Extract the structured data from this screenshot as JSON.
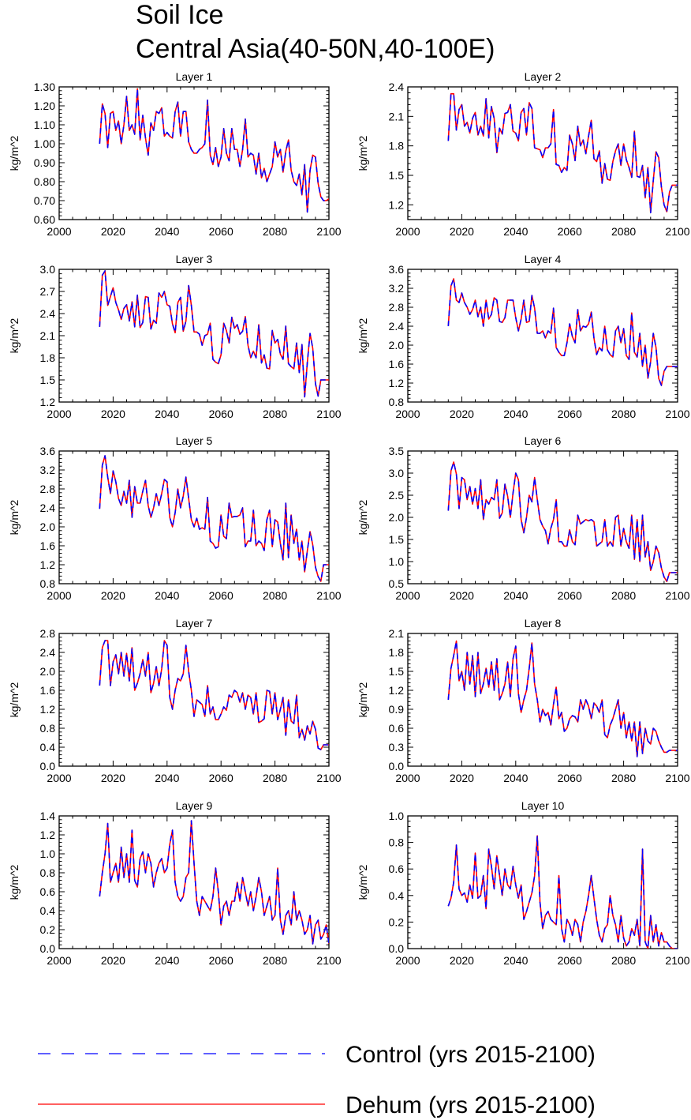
{
  "title_line1": "Soil Ice",
  "title_line2": "Central Asia(40-50N,40-100E)",
  "legend": [
    {
      "label": "Control (yrs 2015-2100)",
      "color": "#0000ff",
      "dash": true
    },
    {
      "label": "Dehum (yrs 2015-2100)",
      "color": "#ff0000",
      "dash": false
    }
  ],
  "colors": {
    "control": "#0000ff",
    "dehum": "#ff0000",
    "axis": "#000000"
  },
  "chart_data": [
    {
      "type": "line",
      "title": "Layer 1",
      "ylabel": "kg/m^2",
      "xlim": [
        2000,
        2100
      ],
      "ylim": [
        0.6,
        1.3
      ],
      "xticks": [
        "2000",
        "2020",
        "2040",
        "2060",
        "2080",
        "2100"
      ],
      "yticks": [
        "0.60",
        "0.70",
        "0.80",
        "0.90",
        "1.00",
        "1.10",
        "1.20",
        "1.30"
      ],
      "x_start": 2015,
      "values": [
        1.0,
        1.21,
        1.16,
        0.98,
        1.16,
        1.17,
        1.07,
        1.12,
        1.0,
        1.1,
        1.25,
        1.07,
        1.1,
        1.05,
        1.29,
        1.02,
        1.15,
        1.03,
        0.94,
        1.11,
        1.07,
        1.17,
        1.16,
        1.19,
        1.04,
        1.06,
        1.04,
        1.03,
        1.17,
        1.22,
        1.04,
        1.17,
        1.17,
        1.01,
        0.97,
        0.95,
        0.95,
        0.97,
        0.98,
        1.0,
        1.23,
        0.94,
        0.89,
        0.98,
        0.88,
        0.93,
        1.08,
        0.95,
        0.91,
        1.08,
        0.97,
        0.97,
        0.88,
        0.97,
        1.13,
        0.93,
        0.95,
        0.94,
        0.84,
        0.95,
        0.82,
        0.87,
        0.8,
        0.84,
        0.88,
        1.01,
        0.93,
        0.97,
        0.85,
        0.96,
        1.02,
        0.86,
        0.8,
        0.78,
        0.84,
        0.73,
        0.89,
        0.64,
        0.86,
        0.94,
        0.93,
        0.79,
        0.72,
        0.7,
        0.7,
        0.71
      ]
    },
    {
      "type": "line",
      "title": "Layer 2",
      "ylabel": "kg/m^2",
      "xlim": [
        2000,
        2100
      ],
      "ylim": [
        1.05,
        2.4
      ],
      "xticks": [
        "2000",
        "2020",
        "2040",
        "2060",
        "2080",
        "2100"
      ],
      "yticks": [
        "1.2",
        "1.5",
        "1.8",
        "2.1",
        "2.4"
      ],
      "x_start": 2015,
      "values": [
        1.85,
        2.33,
        2.33,
        1.96,
        2.17,
        2.22,
        2.0,
        2.04,
        1.93,
        2.08,
        2.14,
        1.91,
        2.0,
        1.9,
        2.28,
        1.88,
        2.2,
        2.08,
        1.73,
        1.98,
        1.92,
        2.13,
        2.14,
        2.22,
        1.95,
        1.93,
        1.85,
        2.14,
        2.18,
        1.91,
        2.24,
        2.18,
        1.78,
        1.77,
        1.76,
        1.68,
        1.78,
        1.78,
        1.82,
        2.17,
        1.61,
        1.6,
        1.53,
        1.58,
        1.55,
        1.91,
        1.82,
        1.65,
        2.0,
        1.8,
        1.86,
        1.72,
        1.9,
        2.06,
        1.67,
        1.64,
        1.75,
        1.42,
        1.62,
        1.46,
        1.45,
        1.64,
        1.75,
        1.82,
        1.6,
        1.82,
        1.66,
        1.58,
        1.48,
        1.95,
        1.49,
        1.48,
        1.6,
        1.27,
        1.58,
        1.12,
        1.45,
        1.74,
        1.68,
        1.38,
        1.2,
        1.13,
        1.33,
        1.4,
        1.4,
        1.4
      ]
    },
    {
      "type": "line",
      "title": "Layer 3",
      "ylabel": "kg/m^2",
      "xlim": [
        2000,
        2100
      ],
      "ylim": [
        1.2,
        3.0
      ],
      "xticks": [
        "2000",
        "2020",
        "2040",
        "2060",
        "2080",
        "2100"
      ],
      "yticks": [
        "1.2",
        "1.5",
        "1.8",
        "2.1",
        "2.4",
        "2.7",
        "3.0"
      ],
      "x_start": 2015,
      "values": [
        2.22,
        2.92,
        2.98,
        2.51,
        2.63,
        2.75,
        2.55,
        2.45,
        2.32,
        2.47,
        2.52,
        2.3,
        2.56,
        2.22,
        2.65,
        2.21,
        2.28,
        2.63,
        2.62,
        2.19,
        2.31,
        2.27,
        2.68,
        2.62,
        2.7,
        2.52,
        2.5,
        2.26,
        2.14,
        2.55,
        2.62,
        2.16,
        2.3,
        2.78,
        2.51,
        2.15,
        2.15,
        2.12,
        1.97,
        2.1,
        2.12,
        2.27,
        1.78,
        1.74,
        1.72,
        1.84,
        2.27,
        2.17,
        2.0,
        2.35,
        2.2,
        2.25,
        2.12,
        2.16,
        2.36,
        1.97,
        1.8,
        1.89,
        1.8,
        2.25,
        1.73,
        1.84,
        1.66,
        1.65,
        2.17,
        2.0,
        2.05,
        1.85,
        1.78,
        2.23,
        1.72,
        1.68,
        1.65,
        2.0,
        1.6,
        1.98,
        1.27,
        1.74,
        2.13,
        1.93,
        1.45,
        1.28,
        1.5,
        1.5,
        1.5,
        1.5
      ]
    },
    {
      "type": "line",
      "title": "Layer 4",
      "ylabel": "kg/m^2",
      "xlim": [
        2000,
        2100
      ],
      "ylim": [
        0.8,
        3.6
      ],
      "xticks": [
        "2000",
        "2020",
        "2040",
        "2060",
        "2080",
        "2100"
      ],
      "yticks": [
        "0.8",
        "1.2",
        "1.6",
        "2.0",
        "2.4",
        "2.8",
        "3.2",
        "3.6"
      ],
      "x_start": 2015,
      "values": [
        2.4,
        3.25,
        3.4,
        2.95,
        2.9,
        3.1,
        2.9,
        2.8,
        2.65,
        2.75,
        2.95,
        2.6,
        2.8,
        2.4,
        2.95,
        2.55,
        2.65,
        3.0,
        2.95,
        2.5,
        2.48,
        2.58,
        2.95,
        2.95,
        2.95,
        2.58,
        2.3,
        2.55,
        2.95,
        2.48,
        2.5,
        3.05,
        2.78,
        2.25,
        2.25,
        2.3,
        2.15,
        2.3,
        2.25,
        2.78,
        1.95,
        1.85,
        1.78,
        1.78,
        2.05,
        2.45,
        2.18,
        2.05,
        2.75,
        2.3,
        2.4,
        2.38,
        2.45,
        2.7,
        2.15,
        1.8,
        1.95,
        1.88,
        2.4,
        1.9,
        1.8,
        1.75,
        2.3,
        2.4,
        2.05,
        2.35,
        1.78,
        1.7,
        2.68,
        1.85,
        1.75,
        2.25,
        1.55,
        2.0,
        1.3,
        1.65,
        2.25,
        1.95,
        1.3,
        1.15,
        1.45,
        1.55,
        1.55,
        1.55,
        1.55,
        1.55
      ]
    },
    {
      "type": "line",
      "title": "Layer 5",
      "ylabel": "kg/m^2",
      "xlim": [
        2000,
        2100
      ],
      "ylim": [
        0.8,
        3.6
      ],
      "xticks": [
        "2000",
        "2020",
        "2040",
        "2060",
        "2080",
        "2100"
      ],
      "yticks": [
        "0.8",
        "1.2",
        "1.6",
        "2.0",
        "2.4",
        "2.8",
        "3.2",
        "3.6"
      ],
      "x_start": 2015,
      "values": [
        2.38,
        3.3,
        3.5,
        3.05,
        2.7,
        3.18,
        2.95,
        2.6,
        2.45,
        2.75,
        2.5,
        2.98,
        2.2,
        2.85,
        2.5,
        2.5,
        2.75,
        2.98,
        2.45,
        2.2,
        2.4,
        2.7,
        2.45,
        2.7,
        3.0,
        2.95,
        2.2,
        2.0,
        2.3,
        2.8,
        2.4,
        2.65,
        3.05,
        2.6,
        2.15,
        2.0,
        2.18,
        1.95,
        1.98,
        1.95,
        2.62,
        1.7,
        1.65,
        1.55,
        1.58,
        2.25,
        1.8,
        1.75,
        2.5,
        2.2,
        2.22,
        2.22,
        2.25,
        2.4,
        1.58,
        1.7,
        1.7,
        2.35,
        1.6,
        1.7,
        1.65,
        1.5,
        2.15,
        2.35,
        1.58,
        2.15,
        2.1,
        1.65,
        1.3,
        2.5,
        1.35,
        2.25,
        1.65,
        1.95,
        1.3,
        1.7,
        1.05,
        1.5,
        1.9,
        1.62,
        1.15,
        0.95,
        0.85,
        1.2,
        1.2,
        1.2
      ]
    },
    {
      "type": "line",
      "title": "Layer 6",
      "ylabel": "kg/m^2",
      "xlim": [
        2000,
        2100
      ],
      "ylim": [
        0.5,
        3.5
      ],
      "xticks": [
        "2000",
        "2020",
        "2040",
        "2060",
        "2080",
        "2100"
      ],
      "yticks": [
        "0.5",
        "1.0",
        "1.5",
        "2.0",
        "2.5",
        "3.0",
        "3.5"
      ],
      "x_start": 2015,
      "values": [
        2.15,
        3.05,
        3.25,
        2.98,
        2.2,
        2.9,
        2.85,
        2.4,
        2.7,
        2.3,
        2.65,
        2.2,
        2.85,
        1.95,
        2.4,
        2.3,
        2.45,
        2.4,
        2.85,
        1.98,
        2.1,
        2.75,
        2.48,
        2.0,
        2.55,
        3.0,
        2.85,
        1.95,
        1.65,
        2.0,
        2.5,
        2.35,
        2.9,
        2.4,
        1.95,
        1.8,
        1.7,
        1.4,
        1.75,
        1.95,
        2.4,
        1.45,
        1.45,
        1.35,
        1.35,
        1.72,
        1.45,
        1.38,
        2.05,
        1.85,
        1.9,
        1.95,
        1.92,
        1.95,
        1.9,
        1.35,
        1.4,
        1.45,
        1.95,
        1.35,
        1.45,
        1.35,
        2.0,
        2.05,
        1.35,
        1.75,
        1.45,
        1.3,
        2.05,
        1.05,
        1.95,
        1.0,
        2.05,
        1.1,
        1.45,
        0.8,
        1.0,
        1.35,
        1.2,
        0.85,
        0.65,
        0.55,
        0.75,
        0.75,
        0.75,
        0.75
      ]
    },
    {
      "type": "line",
      "title": "Layer 7",
      "ylabel": "kg/m^2",
      "xlim": [
        2000,
        2100
      ],
      "ylim": [
        0.0,
        2.8
      ],
      "xticks": [
        "2000",
        "2020",
        "2040",
        "2060",
        "2080",
        "2100"
      ],
      "yticks": [
        "0.0",
        "0.4",
        "0.8",
        "1.2",
        "1.6",
        "2.0",
        "2.4",
        "2.8"
      ],
      "x_start": 2015,
      "values": [
        1.7,
        2.5,
        2.65,
        2.65,
        1.7,
        2.2,
        2.35,
        1.95,
        2.4,
        1.9,
        2.38,
        1.8,
        2.5,
        1.6,
        1.75,
        1.95,
        2.25,
        1.9,
        2.4,
        1.55,
        1.75,
        2.1,
        1.7,
        2.05,
        2.65,
        2.55,
        1.45,
        1.2,
        1.6,
        1.85,
        1.8,
        1.95,
        2.55,
        2.0,
        1.6,
        1.05,
        1.4,
        1.35,
        1.3,
        1.05,
        1.7,
        1.1,
        1.25,
        0.98,
        0.98,
        1.1,
        1.25,
        1.18,
        1.5,
        1.45,
        1.6,
        1.55,
        1.35,
        1.55,
        1.2,
        1.5,
        1.45,
        1.1,
        1.55,
        0.92,
        0.95,
        1.0,
        1.6,
        1.58,
        1.1,
        1.55,
        0.98,
        1.2,
        1.45,
        0.65,
        1.4,
        0.95,
        0.9,
        1.5,
        0.6,
        0.78,
        0.55,
        0.85,
        0.68,
        0.95,
        0.78,
        0.38,
        0.35,
        0.45,
        0.45,
        0.45
      ]
    },
    {
      "type": "line",
      "title": "Layer 8",
      "ylabel": "kg/m^2",
      "xlim": [
        2000,
        2100
      ],
      "ylim": [
        0.0,
        2.1
      ],
      "xticks": [
        "2000",
        "2020",
        "2040",
        "2060",
        "2080",
        "2100"
      ],
      "yticks": [
        "0.0",
        "0.3",
        "0.6",
        "0.9",
        "1.2",
        "1.5",
        "1.8",
        "2.1"
      ],
      "x_start": 2015,
      "values": [
        1.05,
        1.55,
        1.75,
        1.98,
        1.35,
        1.5,
        1.2,
        1.8,
        1.3,
        1.75,
        1.1,
        1.8,
        1.15,
        1.3,
        1.55,
        1.25,
        1.65,
        1.2,
        1.7,
        1.05,
        1.15,
        1.3,
        1.65,
        1.1,
        1.7,
        1.9,
        1.15,
        0.85,
        1.05,
        1.2,
        1.55,
        1.95,
        1.3,
        1.05,
        0.7,
        0.9,
        0.8,
        0.85,
        0.65,
        0.98,
        1.25,
        0.75,
        0.85,
        0.55,
        0.6,
        0.75,
        0.8,
        0.78,
        0.7,
        1.05,
        0.9,
        1.05,
        0.95,
        0.75,
        1.0,
        0.95,
        0.85,
        1.05,
        0.5,
        0.45,
        0.65,
        0.75,
        0.9,
        1.05,
        0.6,
        0.85,
        0.45,
        0.7,
        0.4,
        0.7,
        0.15,
        0.7,
        0.2,
        0.6,
        0.4,
        0.35,
        0.6,
        0.55,
        0.4,
        0.3,
        0.22,
        0.22,
        0.25,
        0.25,
        0.25,
        0.25
      ]
    },
    {
      "type": "line",
      "title": "Layer 9",
      "ylabel": "kg/m^2",
      "xlim": [
        2000,
        2100
      ],
      "ylim": [
        0.0,
        1.4
      ],
      "xticks": [
        "2000",
        "2020",
        "2040",
        "2060",
        "2080",
        "2100"
      ],
      "yticks": [
        "0.0",
        "0.2",
        "0.4",
        "0.6",
        "0.8",
        "1.0",
        "1.2",
        "1.4"
      ],
      "x_start": 2015,
      "values": [
        0.55,
        0.8,
        1.0,
        1.32,
        0.7,
        0.8,
        0.9,
        0.7,
        1.07,
        0.75,
        1.0,
        0.7,
        1.25,
        0.72,
        0.65,
        0.95,
        1.02,
        0.8,
        1.0,
        0.9,
        0.65,
        0.8,
        0.9,
        0.95,
        0.8,
        0.85,
        1.1,
        1.25,
        0.7,
        0.55,
        0.5,
        0.55,
        0.75,
        0.8,
        1.35,
        0.9,
        0.5,
        0.35,
        0.55,
        0.5,
        0.45,
        0.4,
        0.55,
        0.85,
        0.6,
        0.25,
        0.45,
        0.5,
        0.35,
        0.5,
        0.5,
        0.7,
        0.5,
        0.75,
        0.6,
        0.45,
        0.6,
        0.4,
        0.55,
        0.75,
        0.6,
        0.35,
        0.45,
        0.55,
        0.3,
        0.35,
        0.85,
        0.3,
        0.15,
        0.35,
        0.4,
        0.25,
        0.6,
        0.3,
        0.4,
        0.3,
        0.15,
        0.2,
        0.35,
        0.05,
        0.25,
        0.3,
        0.1,
        0.15,
        0.25,
        0.05
      ]
    },
    {
      "type": "line",
      "title": "Layer 10",
      "ylabel": "kg/m^2",
      "xlim": [
        2000,
        2100
      ],
      "ylim": [
        0.0,
        1.0
      ],
      "xticks": [
        "2000",
        "2020",
        "2040",
        "2060",
        "2080",
        "2100"
      ],
      "yticks": [
        "0.0",
        "0.2",
        "0.4",
        "0.6",
        "0.8",
        "1.0"
      ],
      "x_start": 2015,
      "values": [
        0.32,
        0.38,
        0.5,
        0.78,
        0.45,
        0.4,
        0.42,
        0.35,
        0.48,
        0.38,
        0.72,
        0.38,
        0.4,
        0.55,
        0.3,
        0.75,
        0.62,
        0.45,
        0.7,
        0.55,
        0.4,
        0.6,
        0.48,
        0.45,
        0.62,
        0.48,
        0.38,
        0.48,
        0.22,
        0.28,
        0.35,
        0.42,
        0.55,
        0.85,
        0.35,
        0.15,
        0.25,
        0.28,
        0.22,
        0.2,
        0.18,
        0.55,
        0.15,
        0.05,
        0.22,
        0.18,
        0.1,
        0.22,
        0.18,
        0.05,
        0.2,
        0.28,
        0.4,
        0.55,
        0.38,
        0.22,
        0.1,
        0.05,
        0.15,
        0.18,
        0.4,
        0.25,
        0.18,
        0.05,
        0.25,
        0.08,
        0.02,
        0.05,
        0.15,
        0.1,
        0.22,
        0.02,
        0.75,
        0.05,
        0.0,
        0.25,
        0.05,
        0.18,
        0.02,
        0.12,
        0.05,
        0.05,
        0.02,
        0.0,
        0.0,
        0.0
      ]
    }
  ]
}
